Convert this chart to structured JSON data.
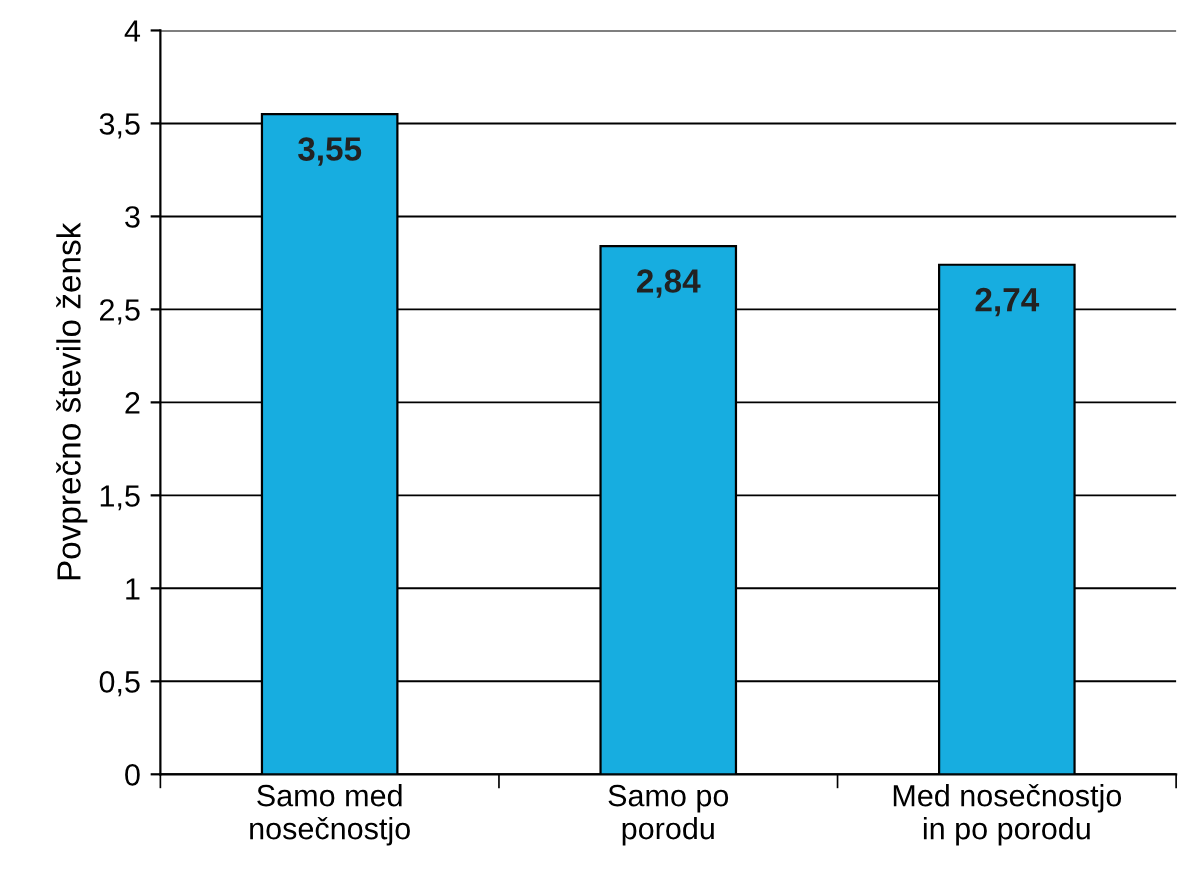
{
  "chart_data": {
    "type": "bar",
    "ylabel": "Povprečno število žensk",
    "categories": [
      "Samo med\nnosečnostjo",
      "Samo po\nporodu",
      "Med nosečnostjo\nin po porodu"
    ],
    "values": [
      3.55,
      2.84,
      2.74
    ],
    "color": "#17ade0",
    "value_labels": [
      "3,55",
      "2,84",
      "2,74"
    ],
    "ylim": [
      0,
      4
    ],
    "yticks": [
      0,
      {
        "value": 0.5,
        "label": "0,5"
      },
      1,
      {
        "value": 1.5,
        "label": "1,5"
      },
      2,
      {
        "value": 2.5,
        "label": "2,5"
      },
      3,
      {
        "value": 3.5,
        "label": "3,5"
      },
      4
    ],
    "grid": "y"
  }
}
